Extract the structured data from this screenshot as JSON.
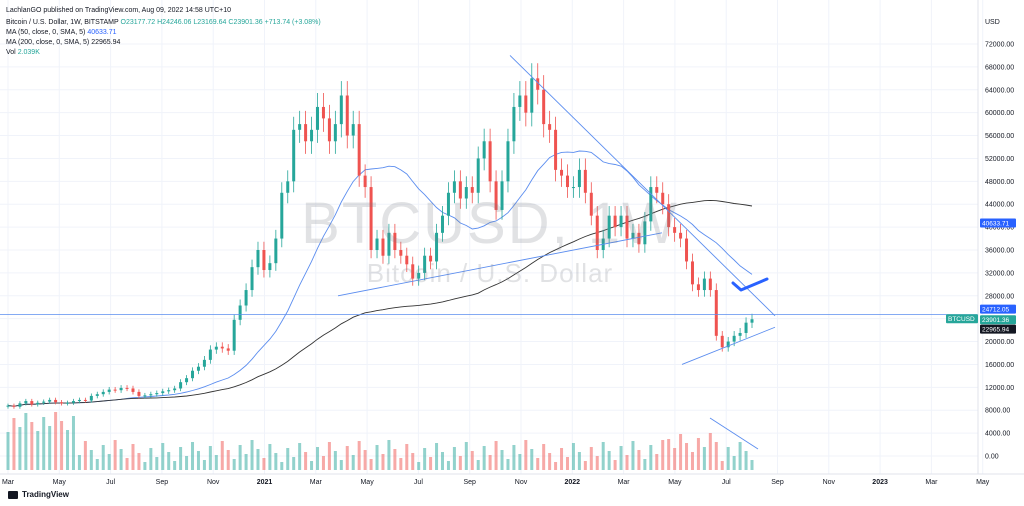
{
  "header": {
    "published": "LachlanGO published on TradingView.com, Aug 09, 2022 14:58 UTC+10",
    "symbol_line": "Bitcoin / U.S. Dollar, 1W, BITSTAMP",
    "ohlc": {
      "o": "O23177.72",
      "h": "H24246.06",
      "l": "L23169.64",
      "c": "C23901.36",
      "chg": "+713.74 (+3.08%)"
    },
    "ma50": {
      "label": "MA (50, close, 0, SMA, 5)",
      "value": "40633.71"
    },
    "ma200": {
      "label": "MA (200, close, 0, SMA, 5)",
      "value": "22965.94"
    },
    "vol": {
      "label": "Vol",
      "value": "2.039K"
    }
  },
  "watermark": {
    "symbol": "BTCUSD, 1W",
    "name": "Bitcoin / U.S. Dollar"
  },
  "footer": {
    "brand": "TradingView"
  },
  "colors": {
    "up": "#26a69a",
    "down": "#ef5350",
    "ma50": "#5b8def",
    "ma200": "#333333",
    "trend": "#5b8def"
  },
  "chart_data": {
    "type": "candlestick",
    "currency": "USD",
    "y_ticks": [
      "72000.00",
      "68000.00",
      "64000.00",
      "60000.00",
      "56000.00",
      "52000.00",
      "48000.00",
      "44000.00",
      "40000.00",
      "36000.00",
      "32000.00",
      "28000.00",
      "24000.00",
      "20000.00",
      "16000.00",
      "12000.00",
      "8000.00",
      "4000.00",
      "0.00"
    ],
    "x_ticks": [
      "Mar",
      "May",
      "Jul",
      "Sep",
      "Nov",
      "2021",
      "Mar",
      "May",
      "Jul",
      "Sep",
      "Nov",
      "2022",
      "Mar",
      "May",
      "Jul",
      "Sep",
      "Nov",
      "2023",
      "Mar",
      "May"
    ],
    "price_labels": [
      {
        "text": "40633.71",
        "price": 40633.71,
        "color": "#2962ff"
      },
      {
        "text": "24712.05",
        "price": 24712.05,
        "color": "#2962ff"
      },
      {
        "text": "BTCUSD",
        "price": 23901.36,
        "color": "#26a69a"
      },
      {
        "text": "23901.36",
        "price": 23901.36,
        "color": "#26a69a"
      },
      {
        "text": "22965.94",
        "price": 22965.94,
        "color": "#131722"
      }
    ],
    "candles_close": [
      8800,
      8600,
      9200,
      9600,
      9000,
      9300,
      9500,
      9800,
      9400,
      9200,
      9300,
      9600,
      9800,
      9700,
      10500,
      10800,
      11200,
      11600,
      11500,
      11900,
      11800,
      11200,
      10500,
      10600,
      10800,
      11000,
      11300,
      11500,
      11800,
      12900,
      13600,
      14900,
      15600,
      16800,
      18600,
      19100,
      18800,
      18400,
      23800,
      26300,
      29000,
      33000,
      36000,
      32500,
      33700,
      38000,
      46000,
      48000,
      57000,
      58000,
      55000,
      57000,
      61000,
      59000,
      55000,
      58000,
      63000,
      56000,
      58000,
      49000,
      47000,
      36000,
      38000,
      35000,
      39000,
      36000,
      35000,
      33500,
      31000,
      32000,
      35000,
      34000,
      39000,
      42000,
      46000,
      48000,
      45000,
      47000,
      46000,
      52000,
      55000,
      48000,
      43000,
      48000,
      55000,
      61000,
      63000,
      60000,
      66000,
      64000,
      58000,
      57000,
      50000,
      49000,
      47000,
      47000,
      50000,
      46000,
      42000,
      36000,
      38000,
      42000,
      40000,
      42000,
      38000,
      39000,
      37000,
      41000,
      47000,
      46000,
      44000,
      40000,
      39000,
      38000,
      34000,
      30000,
      29000,
      31000,
      29000,
      21000,
      19000,
      20000,
      21000,
      21500,
      23300,
      23900
    ]
  }
}
